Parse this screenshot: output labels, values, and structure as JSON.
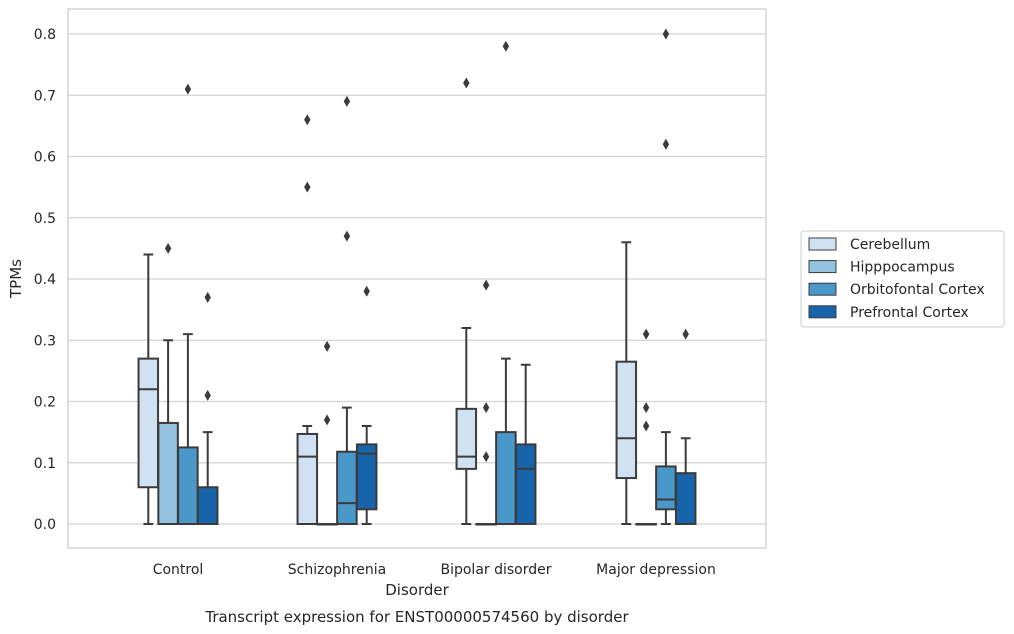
{
  "chart_data": {
    "type": "box",
    "title": "Transcript expression for ENST00000574560 by disorder",
    "xlabel": "Disorder",
    "ylabel": "TPMs",
    "ylim": [
      -0.04,
      0.84
    ],
    "yticks": [
      0.0,
      0.1,
      0.2,
      0.3,
      0.4,
      0.5,
      0.6,
      0.7,
      0.8
    ],
    "ytick_labels": [
      "0.0",
      "0.1",
      "0.2",
      "0.3",
      "0.4",
      "0.5",
      "0.6",
      "0.7",
      "0.8"
    ],
    "grid": true,
    "legend_position": "right",
    "categories": [
      "Control",
      "Schizophrenia",
      "Bipolar disorder",
      "Major depression"
    ],
    "series": [
      {
        "name": "Cerebellum",
        "color": "#d0e1f2",
        "boxes": [
          {
            "whislo": 0.0,
            "q1": 0.06,
            "med": 0.22,
            "q3": 0.27,
            "whishi": 0.44,
            "fliers": []
          },
          {
            "whislo": 0.0,
            "q1": 0.0,
            "med": 0.11,
            "q3": 0.147,
            "whishi": 0.16,
            "fliers": [
              0.66,
              0.55
            ]
          },
          {
            "whislo": 0.0,
            "q1": 0.09,
            "med": 0.11,
            "q3": 0.188,
            "whishi": 0.32,
            "fliers": [
              0.72
            ]
          },
          {
            "whislo": 0.0,
            "q1": 0.075,
            "med": 0.14,
            "q3": 0.265,
            "whishi": 0.46,
            "fliers": []
          }
        ]
      },
      {
        "name": "Hipppocampus",
        "color": "#94c4df",
        "boxes": [
          {
            "whislo": 0.0,
            "q1": 0.0,
            "med": 0.0,
            "q3": 0.165,
            "whishi": 0.3,
            "fliers": [
              0.45
            ]
          },
          {
            "whislo": 0.0,
            "q1": 0.0,
            "med": 0.0,
            "q3": 0.0,
            "whishi": 0.0,
            "fliers": [
              0.29,
              0.17
            ]
          },
          {
            "whislo": 0.0,
            "q1": 0.0,
            "med": 0.0,
            "q3": 0.0,
            "whishi": 0.0,
            "fliers": [
              0.39,
              0.19,
              0.11
            ]
          },
          {
            "whislo": 0.0,
            "q1": 0.0,
            "med": 0.0,
            "q3": 0.0,
            "whishi": 0.0,
            "fliers": [
              0.31,
              0.19,
              0.16
            ]
          }
        ]
      },
      {
        "name": "Orbitofontal Cortex",
        "color": "#4a98c9",
        "boxes": [
          {
            "whislo": 0.0,
            "q1": 0.0,
            "med": 0.0,
            "q3": 0.125,
            "whishi": 0.31,
            "fliers": [
              0.71
            ]
          },
          {
            "whislo": 0.0,
            "q1": 0.0,
            "med": 0.034,
            "q3": 0.118,
            "whishi": 0.19,
            "fliers": [
              0.69,
              0.47
            ]
          },
          {
            "whislo": 0.0,
            "q1": 0.0,
            "med": 0.0,
            "q3": 0.15,
            "whishi": 0.27,
            "fliers": [
              0.78
            ]
          },
          {
            "whislo": 0.0,
            "q1": 0.024,
            "med": 0.04,
            "q3": 0.094,
            "whishi": 0.15,
            "fliers": [
              0.8,
              0.62
            ]
          }
        ]
      },
      {
        "name": "Prefrontal Cortex",
        "color": "#1764ab",
        "boxes": [
          {
            "whislo": 0.0,
            "q1": 0.0,
            "med": 0.0,
            "q3": 0.06,
            "whishi": 0.15,
            "fliers": [
              0.37,
              0.21
            ]
          },
          {
            "whislo": 0.0,
            "q1": 0.024,
            "med": 0.115,
            "q3": 0.13,
            "whishi": 0.16,
            "fliers": [
              0.38
            ]
          },
          {
            "whislo": 0.0,
            "q1": 0.0,
            "med": 0.09,
            "q3": 0.13,
            "whishi": 0.26,
            "fliers": []
          },
          {
            "whislo": 0.0,
            "q1": 0.0,
            "med": 0.0,
            "q3": 0.083,
            "whishi": 0.14,
            "fliers": [
              0.31
            ]
          }
        ]
      }
    ]
  }
}
